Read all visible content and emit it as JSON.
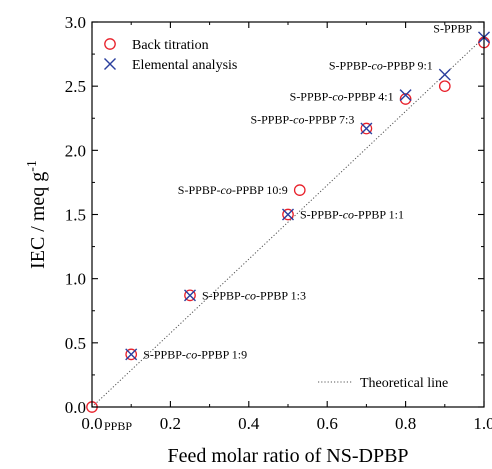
{
  "chart_data": {
    "type": "scatter",
    "title": "",
    "xlabel": "Feed molar ratio of NS-DPBP",
    "ylabel": {
      "base": "IEC / meq g",
      "superscript": "-1"
    },
    "xlim": [
      0.0,
      1.0
    ],
    "ylim": [
      0.0,
      3.0
    ],
    "x_ticks": [
      "0.0",
      "0.2",
      "0.4",
      "0.6",
      "0.8",
      "1.0"
    ],
    "y_ticks": [
      "0.0",
      "0.5",
      "1.0",
      "1.5",
      "2.0",
      "2.5",
      "3.0"
    ],
    "grid": false,
    "legend_position": "top-left",
    "series": [
      {
        "name": "Back titration",
        "marker": "circle",
        "color": "#e8202a",
        "points": [
          {
            "x": 0.0,
            "y": 0.0
          },
          {
            "x": 0.1,
            "y": 0.41
          },
          {
            "x": 0.25,
            "y": 0.87
          },
          {
            "x": 0.5,
            "y": 1.5
          },
          {
            "x": 0.53,
            "y": 1.69
          },
          {
            "x": 0.7,
            "y": 2.17
          },
          {
            "x": 0.8,
            "y": 2.4
          },
          {
            "x": 0.9,
            "y": 2.5
          },
          {
            "x": 1.0,
            "y": 2.84
          }
        ]
      },
      {
        "name": "Elemental analysis",
        "marker": "cross",
        "color": "#2a3f9e",
        "points": [
          {
            "x": 0.1,
            "y": 0.41
          },
          {
            "x": 0.25,
            "y": 0.87
          },
          {
            "x": 0.5,
            "y": 1.5
          },
          {
            "x": 0.7,
            "y": 2.17
          },
          {
            "x": 0.8,
            "y": 2.43
          },
          {
            "x": 0.9,
            "y": 2.59
          },
          {
            "x": 1.0,
            "y": 2.88
          }
        ]
      }
    ],
    "theoretical_line": {
      "name": "Theoretical line",
      "style": "dotted",
      "color": "#555555",
      "from": {
        "x": 0.0,
        "y": 0.0
      },
      "to": {
        "x": 1.0,
        "y": 2.88
      }
    },
    "annotations": [
      {
        "parts": [
          {
            "t": "PPBP"
          }
        ],
        "x": 0.0,
        "y": 0.0,
        "anchor": "right-below"
      },
      {
        "parts": [
          {
            "t": "S-PPBP-"
          },
          {
            "t": "co",
            "italic": true
          },
          {
            "t": "-PPBP 1:9"
          }
        ],
        "x": 0.1,
        "y": 0.41,
        "anchor": "right"
      },
      {
        "parts": [
          {
            "t": "S-PPBP-"
          },
          {
            "t": "co",
            "italic": true
          },
          {
            "t": "-PPBP 1:3"
          }
        ],
        "x": 0.25,
        "y": 0.87,
        "anchor": "right"
      },
      {
        "parts": [
          {
            "t": "S-PPBP-"
          },
          {
            "t": "co",
            "italic": true
          },
          {
            "t": "-PPBP 1:1"
          }
        ],
        "x": 0.5,
        "y": 1.5,
        "anchor": "right"
      },
      {
        "parts": [
          {
            "t": "S-PPBP-"
          },
          {
            "t": "co",
            "italic": true
          },
          {
            "t": "-PPBP 10:9"
          }
        ],
        "x": 0.53,
        "y": 1.69,
        "anchor": "left"
      },
      {
        "parts": [
          {
            "t": "S-PPBP-"
          },
          {
            "t": "co",
            "italic": true
          },
          {
            "t": "-PPBP 7:3"
          }
        ],
        "x": 0.7,
        "y": 2.17,
        "anchor": "left-above"
      },
      {
        "parts": [
          {
            "t": "S-PPBP-"
          },
          {
            "t": "co",
            "italic": true
          },
          {
            "t": "-PPBP 4:1"
          }
        ],
        "x": 0.8,
        "y": 2.42,
        "anchor": "left"
      },
      {
        "parts": [
          {
            "t": "S-PPBP-"
          },
          {
            "t": "co",
            "italic": true
          },
          {
            "t": "-PPBP 9:1"
          }
        ],
        "x": 0.9,
        "y": 2.59,
        "anchor": "left-above"
      },
      {
        "parts": [
          {
            "t": "S-PPBP"
          }
        ],
        "x": 1.0,
        "y": 2.88,
        "anchor": "left-above"
      }
    ]
  }
}
